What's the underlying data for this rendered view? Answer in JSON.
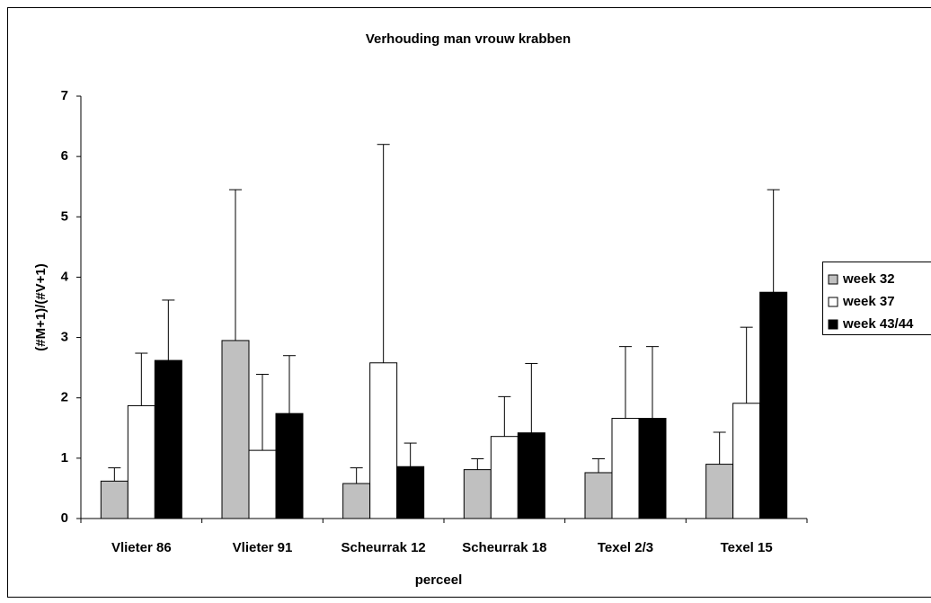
{
  "chart_data": {
    "type": "bar",
    "title": "Verhouding man vrouw krabben",
    "x_label": "perceel",
    "y_label": "(#M+1)/(#V+1)",
    "categories": [
      "Vlieter 86",
      "Vlieter 91",
      "Scheurrak 12",
      "Scheurrak 18",
      "Texel 2/3",
      "Texel 15"
    ],
    "series": [
      {
        "name": "week 32",
        "color": "#c0c0c0",
        "values": [
          0.62,
          2.95,
          0.58,
          0.81,
          0.76,
          0.9
        ],
        "errors": [
          0.22,
          2.5,
          0.26,
          0.18,
          0.23,
          0.53
        ]
      },
      {
        "name": "week 37",
        "color": "#ffffff",
        "values": [
          1.87,
          1.13,
          2.58,
          1.36,
          1.66,
          1.91
        ],
        "errors": [
          0.87,
          1.26,
          3.62,
          0.66,
          1.19,
          1.26
        ]
      },
      {
        "name": "week 43/44",
        "color": "#000000",
        "values": [
          2.62,
          1.74,
          0.86,
          1.42,
          1.66,
          3.75
        ],
        "errors": [
          1.0,
          0.96,
          0.39,
          1.15,
          1.19,
          1.7
        ]
      }
    ],
    "ylim": [
      0,
      7
    ],
    "yticks": [
      0,
      1,
      2,
      3,
      4,
      5,
      6,
      7
    ],
    "grid": false,
    "legend": "right"
  }
}
